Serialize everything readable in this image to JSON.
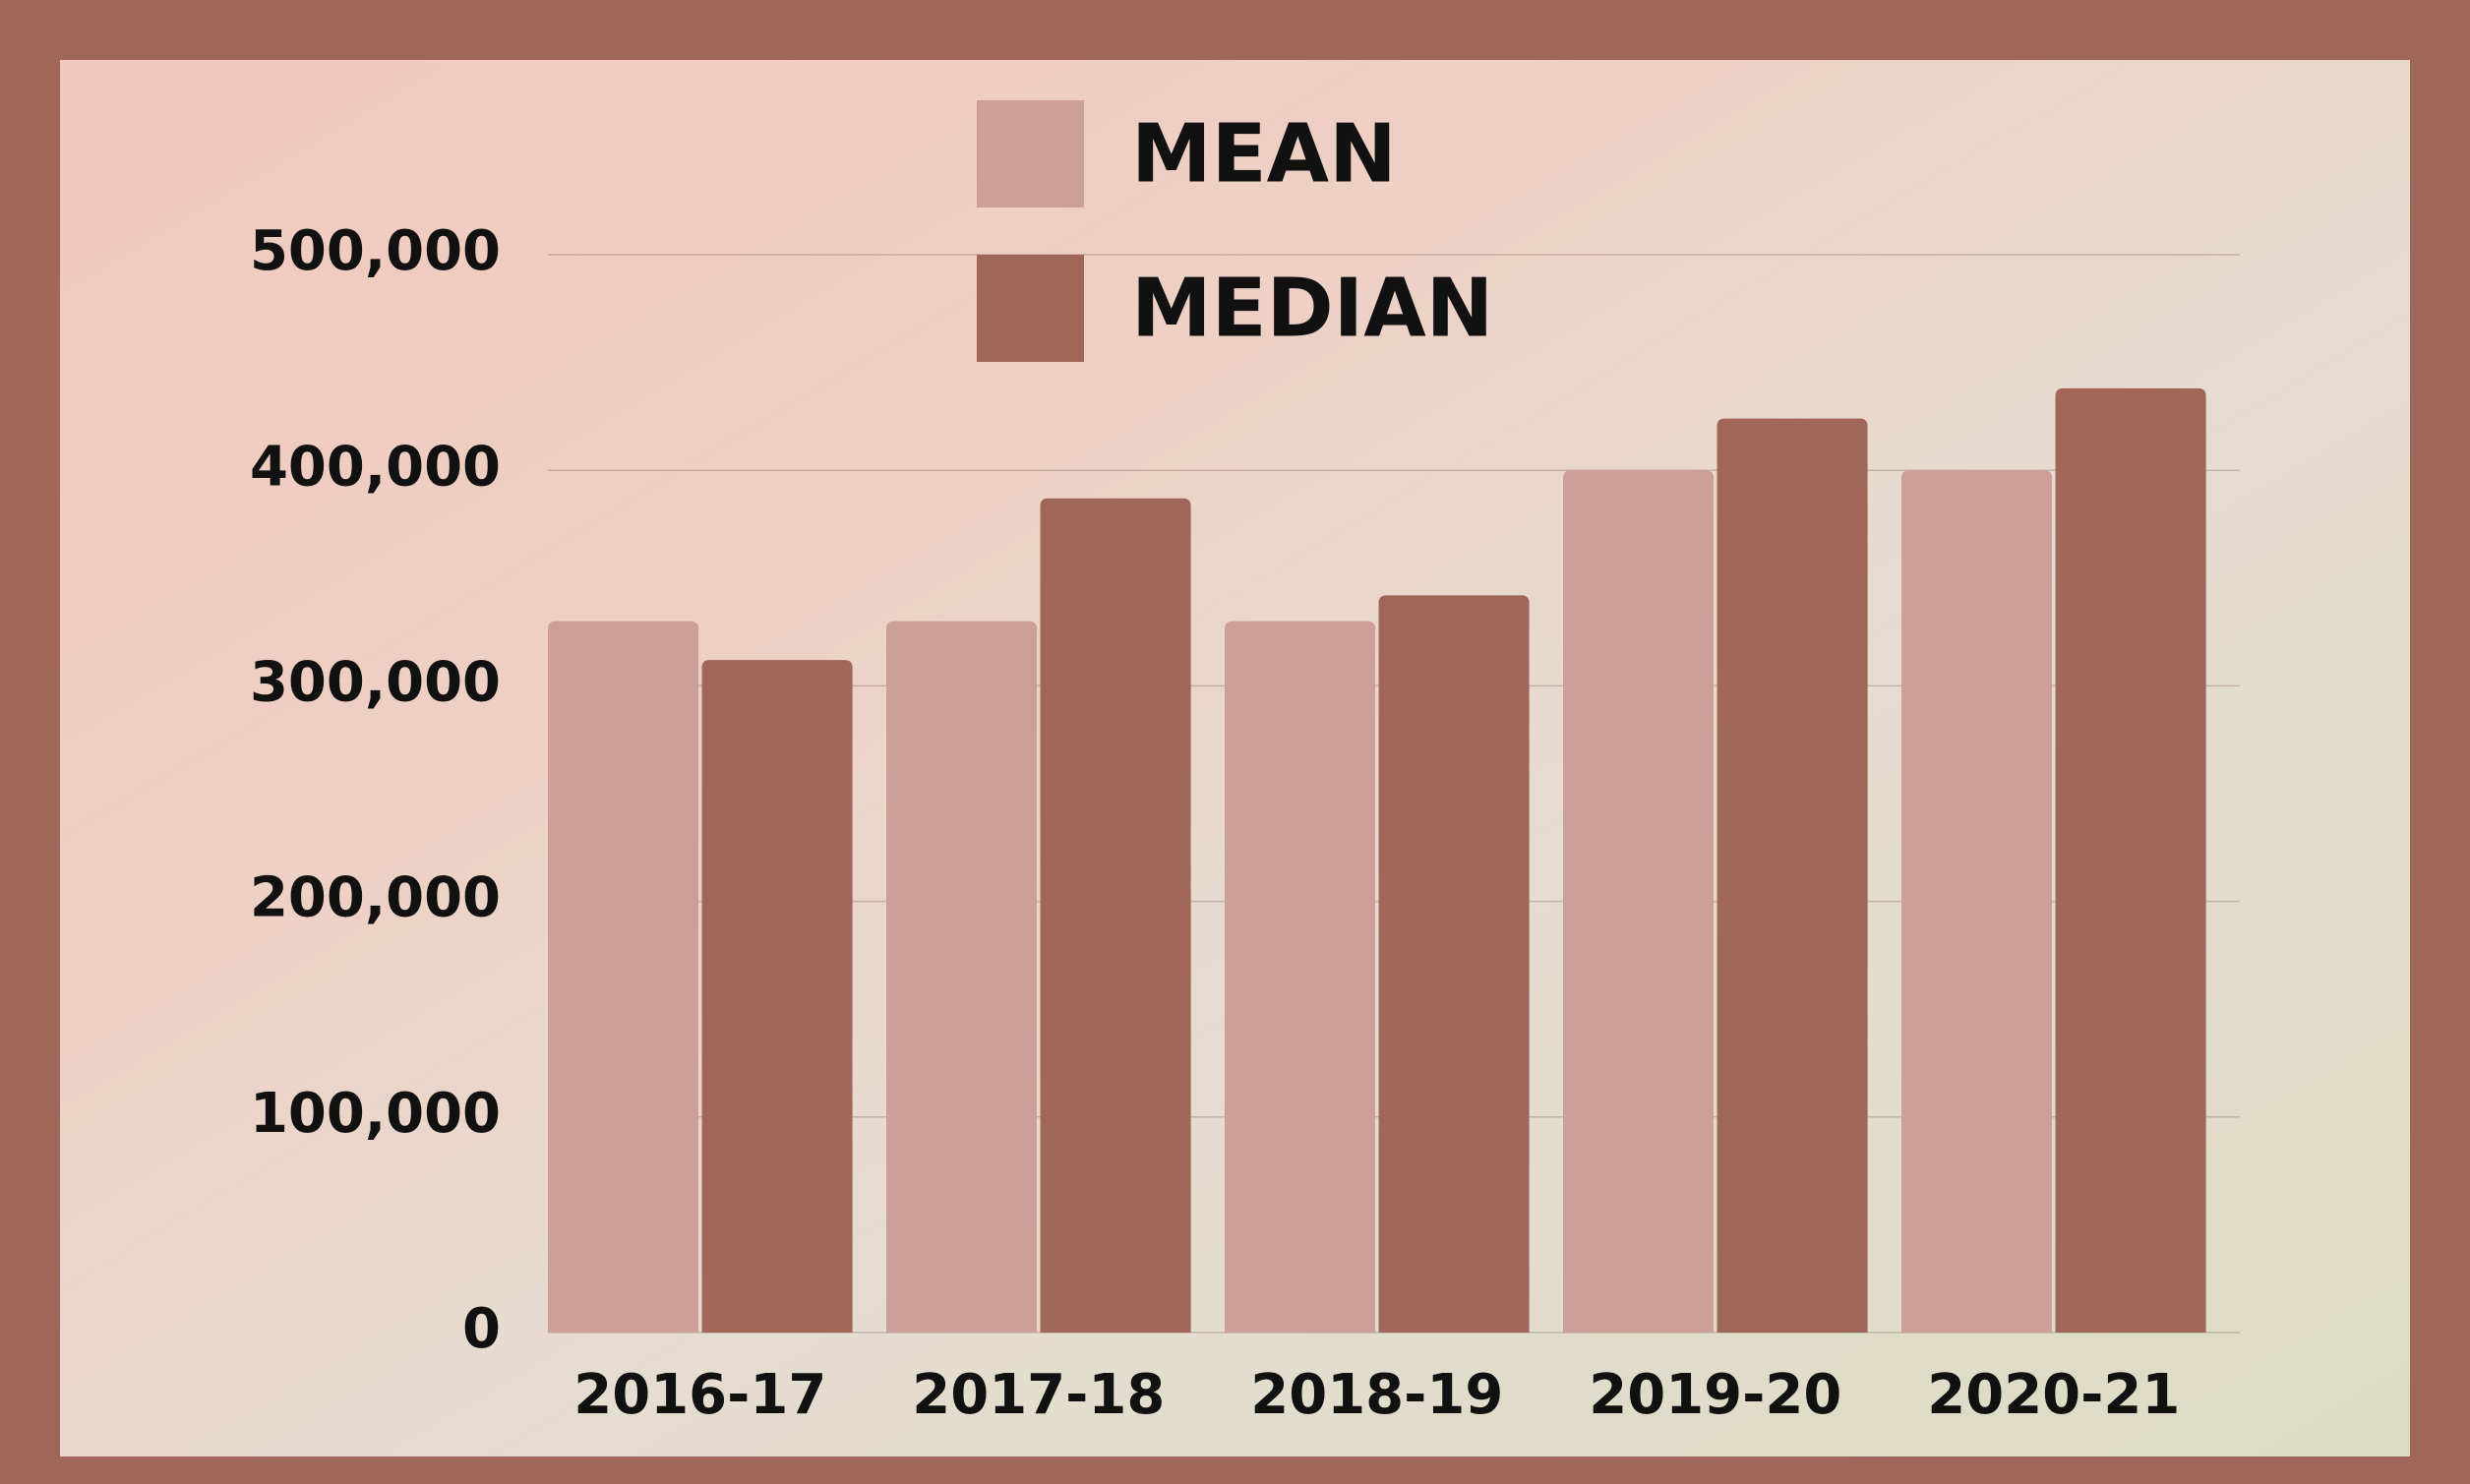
{
  "chart_data": {
    "type": "bar",
    "categories": [
      "2016-17",
      "2017-18",
      "2018-19",
      "2019-20",
      "2020-21"
    ],
    "series": [
      {
        "name": "MEAN",
        "color": "#cc9f98",
        "values": [
          330000,
          330000,
          330000,
          400000,
          400000
        ]
      },
      {
        "name": "MEDIAN",
        "color": "#a0665a",
        "values": [
          312000,
          387000,
          342000,
          424000,
          438000
        ]
      }
    ],
    "ylim": [
      0,
      500000
    ],
    "yticks": [
      0,
      {
        "value": 100000,
        "label": "100,000"
      },
      {
        "value": 200000,
        "label": "200,000"
      },
      {
        "value": 300000,
        "label": "300,000"
      },
      {
        "value": 400000,
        "label": "400,000"
      },
      {
        "value": 500000,
        "label": "500,000"
      }
    ],
    "grid": true
  }
}
